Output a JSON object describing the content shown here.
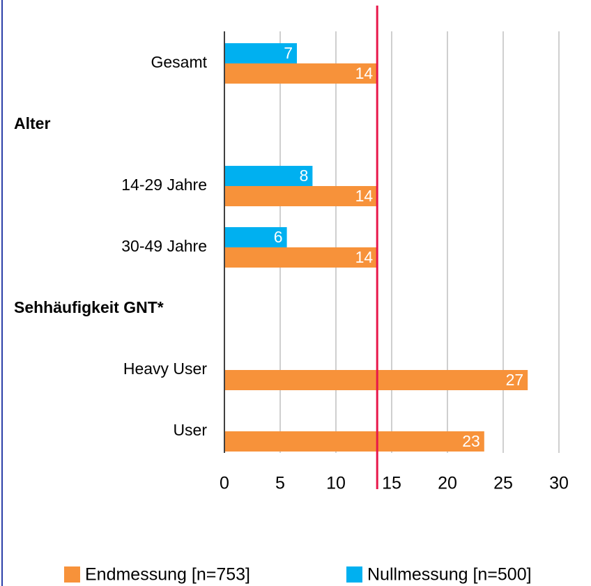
{
  "chart_data": {
    "type": "hbar",
    "categories": [
      "Gesamt",
      "Alter",
      "14-29 Jahre",
      "30-49 Jahre",
      "Sehhäufigkeit GNT*",
      "Heavy User",
      "User"
    ],
    "bold_categories": [
      1,
      4
    ],
    "series": [
      {
        "name": "Endmessung [n=753]",
        "color": "#f7923a",
        "values": [
          13.7,
          null,
          13.7,
          13.7,
          null,
          27.2,
          23.3
        ],
        "value_labels": [
          "14",
          null,
          "14",
          "14",
          null,
          "27",
          "23"
        ]
      },
      {
        "name": "Nullmessung [n=500]",
        "color": "#00b0f0",
        "values": [
          6.5,
          null,
          7.9,
          5.6,
          null,
          null,
          null
        ],
        "value_labels": [
          "7",
          null,
          "8",
          "6",
          null,
          null,
          null
        ]
      }
    ],
    "xlim": [
      0,
      30
    ],
    "xticks": [
      0,
      5,
      10,
      15,
      20,
      25,
      30
    ],
    "grid": true,
    "reference_line": {
      "value": 13.7,
      "color": "#e8174a"
    }
  }
}
